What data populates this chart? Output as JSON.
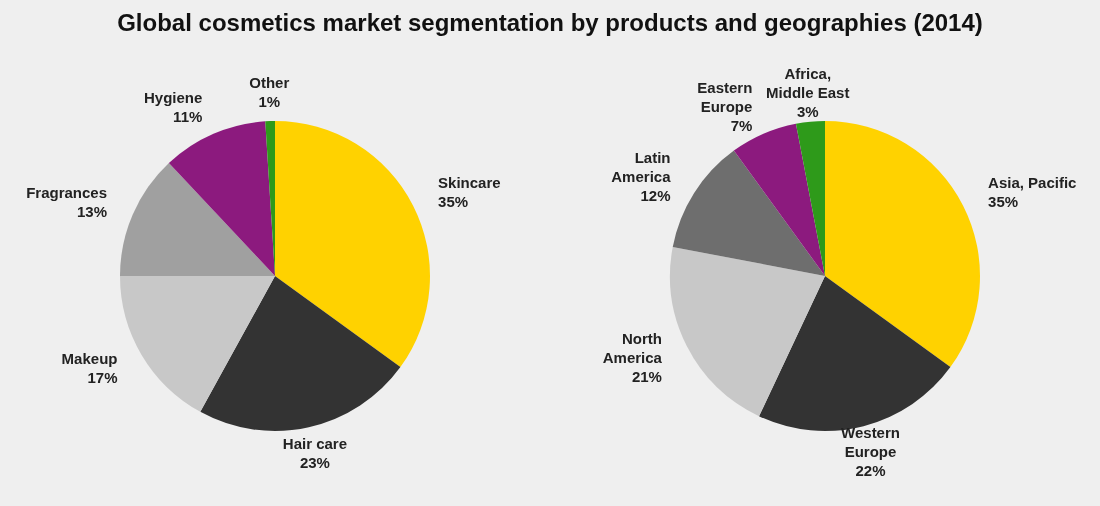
{
  "chart_data": [
    {
      "type": "pie",
      "title": "Global cosmetics market segmentation by products and geographies (2014)",
      "categories": [
        "Skincare",
        "Hair care",
        "Makeup",
        "Fragrances",
        "Hygiene",
        "Other"
      ],
      "values": [
        35,
        23,
        17,
        13,
        11,
        1
      ],
      "value_labels": [
        "35%",
        "23%",
        "17%",
        "13%",
        "11%",
        "1%"
      ],
      "colors": [
        "#ffd200",
        "#333333",
        "#c8c8c8",
        "#a0a0a0",
        "#8c1a7e",
        "#2e9a1a"
      ],
      "legend": false
    },
    {
      "type": "pie",
      "categories": [
        "Asia, Pacific",
        "Western Europe",
        "North America",
        "Latin America",
        "Eastern Europe",
        "Africa, Middle East"
      ],
      "values": [
        35,
        22,
        21,
        12,
        7,
        3
      ],
      "value_labels": [
        "35%",
        "22%",
        "21%",
        "12%",
        "7%",
        "3%"
      ],
      "colors": [
        "#ffd200",
        "#333333",
        "#c8c8c8",
        "#6e6e6e",
        "#8c1a7e",
        "#2e9a1a"
      ],
      "legend": false
    }
  ]
}
